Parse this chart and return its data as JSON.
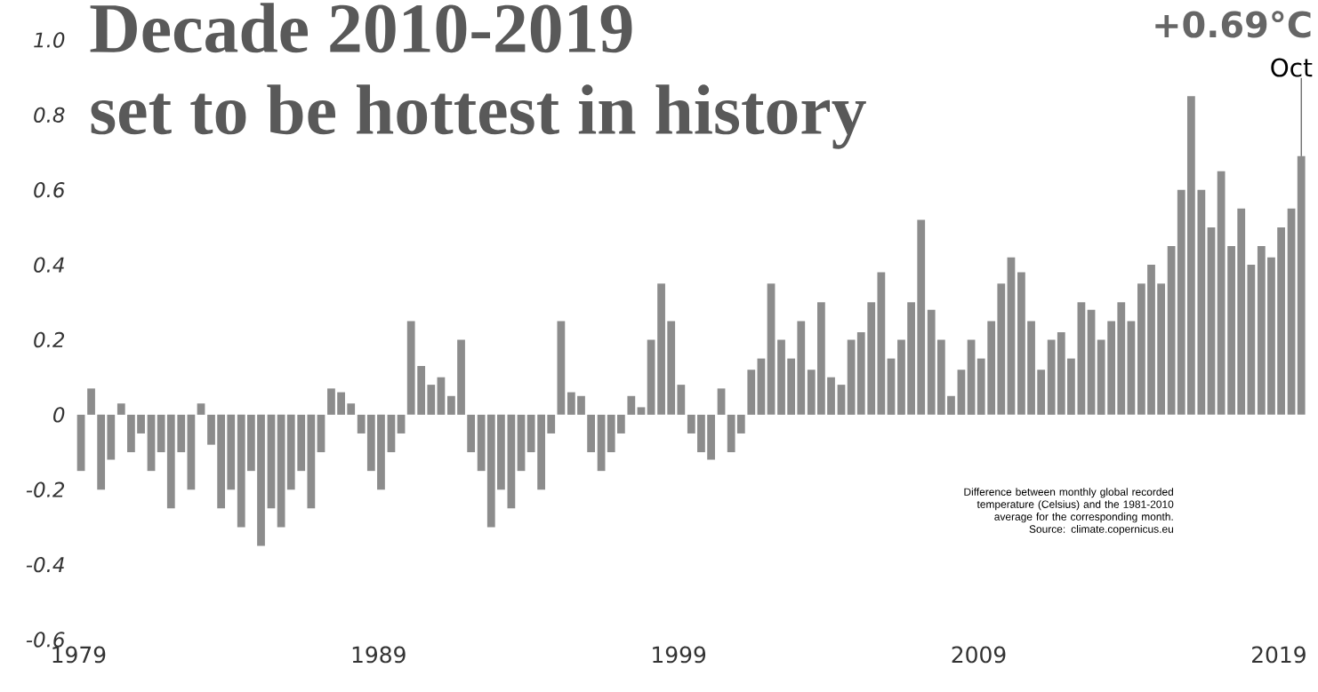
{
  "chart_data": {
    "type": "bar",
    "title": "Decade 2010-2019",
    "subtitle": "set to be hottest in history",
    "x": [
      1979.08,
      1979.42,
      1979.75,
      1980.08,
      1980.42,
      1980.75,
      1981.08,
      1981.42,
      1981.75,
      1982.08,
      1982.42,
      1982.75,
      1983.08,
      1983.42,
      1983.75,
      1984.08,
      1984.42,
      1984.75,
      1985.08,
      1985.42,
      1985.75,
      1986.08,
      1986.42,
      1986.75,
      1987.08,
      1987.42,
      1987.75,
      1988.08,
      1988.42,
      1988.75,
      1989.08,
      1989.42,
      1989.75,
      1990.08,
      1990.42,
      1990.75,
      1991.08,
      1991.42,
      1991.75,
      1992.08,
      1992.42,
      1992.75,
      1993.08,
      1993.42,
      1993.75,
      1994.08,
      1994.42,
      1994.75,
      1995.08,
      1995.42,
      1995.75,
      1996.08,
      1996.42,
      1996.75,
      1997.08,
      1997.42,
      1997.75,
      1998.08,
      1998.42,
      1998.75,
      1999.08,
      1999.42,
      1999.75,
      2000.08,
      2000.42,
      2000.75,
      2001.08,
      2001.42,
      2001.75,
      2002.08,
      2002.42,
      2002.75,
      2003.08,
      2003.42,
      2003.75,
      2004.08,
      2004.42,
      2004.75,
      2005.08,
      2005.42,
      2005.75,
      2006.08,
      2006.42,
      2006.75,
      2007.08,
      2007.42,
      2007.75,
      2008.08,
      2008.42,
      2008.75,
      2009.08,
      2009.42,
      2009.75,
      2010.08,
      2010.42,
      2010.75,
      2011.08,
      2011.42,
      2011.75,
      2012.08,
      2012.42,
      2012.75,
      2013.08,
      2013.42,
      2013.75,
      2014.08,
      2014.42,
      2014.75,
      2015.08,
      2015.42,
      2015.75,
      2016.08,
      2016.42,
      2016.75,
      2017.08,
      2017.42,
      2017.75,
      2018.08,
      2018.42,
      2018.75,
      2019.08,
      2019.42,
      2019.75
    ],
    "values": [
      -0.15,
      0.07,
      -0.2,
      -0.12,
      0.03,
      -0.1,
      -0.05,
      -0.15,
      -0.1,
      -0.25,
      -0.1,
      -0.2,
      0.03,
      -0.08,
      -0.25,
      -0.2,
      -0.3,
      -0.15,
      -0.35,
      -0.25,
      -0.3,
      -0.2,
      -0.15,
      -0.25,
      -0.1,
      0.07,
      0.06,
      0.03,
      -0.05,
      -0.15,
      -0.2,
      -0.1,
      -0.05,
      0.25,
      0.13,
      0.08,
      0.1,
      0.05,
      0.2,
      -0.1,
      -0.15,
      -0.3,
      -0.2,
      -0.25,
      -0.15,
      -0.1,
      -0.2,
      -0.05,
      0.25,
      0.06,
      0.05,
      -0.1,
      -0.15,
      -0.1,
      -0.05,
      0.05,
      0.02,
      0.2,
      0.35,
      0.25,
      0.08,
      -0.05,
      -0.1,
      -0.12,
      0.07,
      -0.1,
      -0.05,
      0.12,
      0.15,
      0.35,
      0.2,
      0.15,
      0.25,
      0.12,
      0.3,
      0.1,
      0.08,
      0.2,
      0.22,
      0.3,
      0.38,
      0.15,
      0.2,
      0.3,
      0.52,
      0.28,
      0.2,
      0.05,
      0.12,
      0.2,
      0.15,
      0.25,
      0.35,
      0.42,
      0.38,
      0.25,
      0.12,
      0.2,
      0.22,
      0.15,
      0.3,
      0.28,
      0.2,
      0.25,
      0.3,
      0.25,
      0.35,
      0.4,
      0.35,
      0.45,
      0.6,
      0.85,
      0.6,
      0.5,
      0.65,
      0.45,
      0.55,
      0.4,
      0.45,
      0.42,
      0.5,
      0.55,
      0.69
    ],
    "color": "#8c8c8c",
    "xlim": [
      1978.9,
      2020.1
    ],
    "xticks": [
      1979,
      1989,
      1999,
      2009,
      2019
    ],
    "ylim": [
      -0.6,
      1.0
    ],
    "yticks": [
      {
        "value": 1.0,
        "label": "1.0"
      },
      0.8,
      0.6,
      0.4,
      0.2,
      0,
      -0.2,
      -0.4,
      -0.6
    ],
    "annotations": [
      {
        "text": "+0.69°C",
        "x": 2019.75,
        "y": 0.69
      },
      {
        "text": "Oct",
        "x": 2019.75,
        "y": 0.69
      },
      "Difference between monthly global recorded temperature (Celsius) and the 1981-2010 average for the corresponding month.",
      "Source: climate.copernicus.eu"
    ]
  }
}
